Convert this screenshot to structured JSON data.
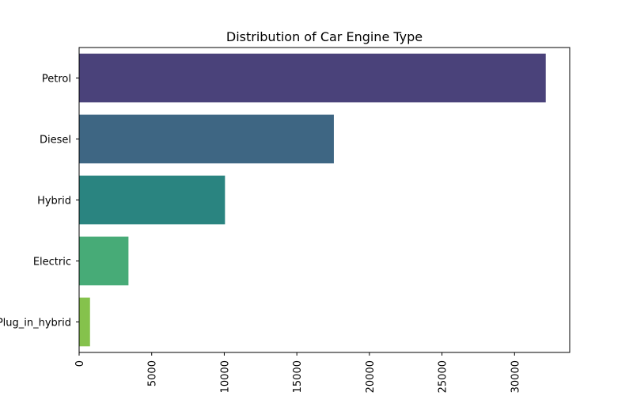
{
  "chart_data": {
    "type": "bar",
    "orientation": "horizontal",
    "title": "Distribution of Car Engine Type",
    "xlabel": "",
    "ylabel": "",
    "categories": [
      "Petrol",
      "Diesel",
      "Hybrid",
      "Electric",
      "Plug_in_hybrid"
    ],
    "values": [
      32150,
      17550,
      10050,
      3400,
      750
    ],
    "colors": [
      "#4a427a",
      "#3e6683",
      "#2a8480",
      "#47ab77",
      "#85c24c"
    ],
    "xlim": [
      0,
      33800
    ],
    "xticks": [
      0,
      5000,
      10000,
      15000,
      20000,
      25000,
      30000
    ],
    "xtick_labels": [
      "0",
      "5000",
      "10000",
      "15000",
      "20000",
      "25000",
      "30000"
    ],
    "xtick_label_rotation": 90,
    "grid": false,
    "legend": false
  }
}
